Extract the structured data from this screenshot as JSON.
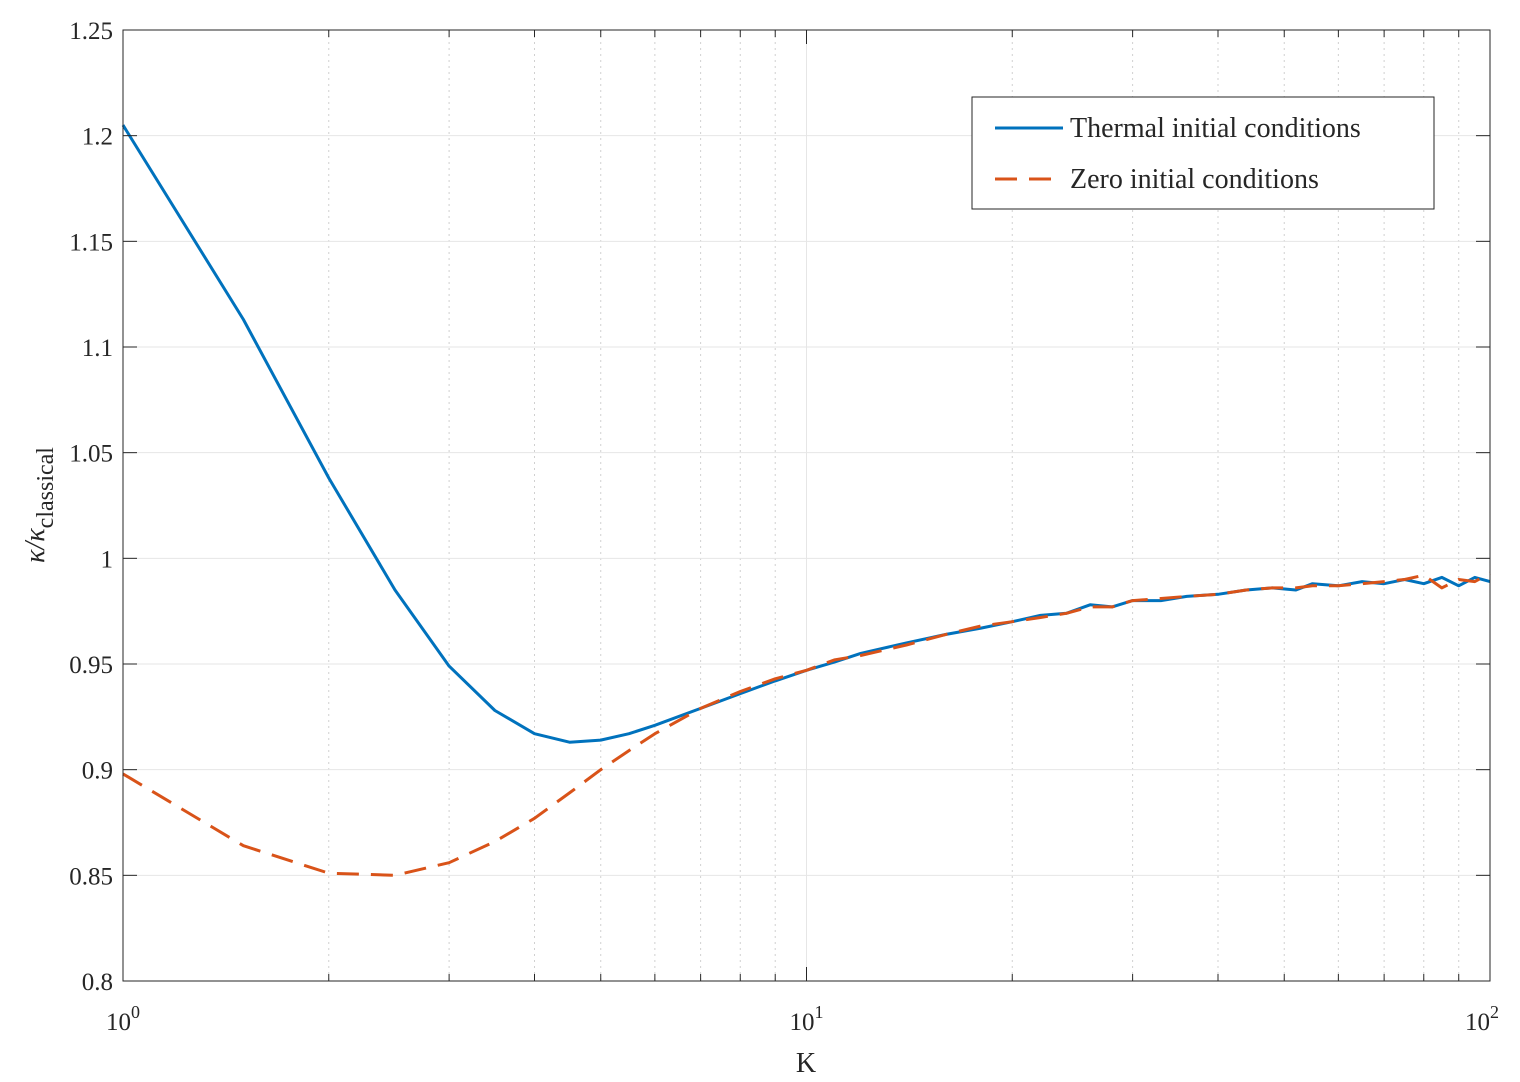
{
  "chart_data": {
    "type": "line",
    "title": "",
    "xlabel": "K",
    "ylabel": {
      "base": "κ/κ",
      "subscript": "classical"
    },
    "x_scale": "log",
    "xlim": [
      1,
      100
    ],
    "ylim": [
      0.8,
      1.25
    ],
    "grid": true,
    "minor_grid_x": true,
    "legend_position": "top-right",
    "x_ticks": [
      {
        "value": 1,
        "base": "10",
        "exp": "0"
      },
      {
        "value": 10,
        "base": "10",
        "exp": "1"
      },
      {
        "value": 100,
        "base": "10",
        "exp": "2"
      }
    ],
    "y_ticks": [
      {
        "value": 0.8,
        "label": "0.8"
      },
      {
        "value": 0.85,
        "label": "0.85"
      },
      {
        "value": 0.9,
        "label": "0.9"
      },
      {
        "value": 0.95,
        "label": "0.95"
      },
      {
        "value": 1.0,
        "label": "1"
      },
      {
        "value": 1.05,
        "label": "1.05"
      },
      {
        "value": 1.1,
        "label": "1.1"
      },
      {
        "value": 1.15,
        "label": "1.15"
      },
      {
        "value": 1.2,
        "label": "1.2"
      },
      {
        "value": 1.25,
        "label": "1.25"
      }
    ],
    "series": [
      {
        "name": "Thermal initial conditions",
        "color": "#0072BD",
        "dash": "solid",
        "x": [
          1,
          1.5,
          2,
          2.5,
          3,
          3.5,
          4,
          4.5,
          5,
          5.5,
          6,
          7,
          8,
          9,
          10,
          11,
          12,
          14,
          16,
          18,
          20,
          22,
          24,
          26,
          28,
          30,
          33,
          36,
          40,
          44,
          48,
          52,
          55,
          60,
          65,
          70,
          75,
          80,
          85,
          90,
          95,
          100
        ],
        "y": [
          1.205,
          1.113,
          1.038,
          0.985,
          0.949,
          0.928,
          0.917,
          0.913,
          0.914,
          0.917,
          0.921,
          0.929,
          0.936,
          0.942,
          0.947,
          0.951,
          0.955,
          0.96,
          0.964,
          0.967,
          0.97,
          0.973,
          0.974,
          0.978,
          0.977,
          0.98,
          0.98,
          0.982,
          0.983,
          0.985,
          0.986,
          0.985,
          0.988,
          0.987,
          0.989,
          0.988,
          0.99,
          0.988,
          0.991,
          0.987,
          0.991,
          0.989
        ]
      },
      {
        "name": "Zero initial conditions",
        "color": "#D95319",
        "dash": "dashed",
        "x": [
          1,
          1.5,
          2,
          2.5,
          3,
          3.5,
          4,
          4.5,
          5,
          5.5,
          6,
          7,
          8,
          9,
          10,
          11,
          12,
          14,
          16,
          18,
          20,
          22,
          24,
          26,
          28,
          30,
          33,
          36,
          40,
          44,
          48,
          52,
          55,
          60,
          65,
          70,
          75,
          80,
          85,
          90,
          95,
          100
        ],
        "y": [
          0.898,
          0.864,
          0.851,
          0.85,
          0.856,
          0.866,
          0.877,
          0.889,
          0.9,
          0.909,
          0.917,
          0.929,
          0.937,
          0.943,
          0.947,
          0.952,
          0.954,
          0.959,
          0.964,
          0.968,
          0.97,
          0.972,
          0.974,
          0.977,
          0.977,
          0.98,
          0.981,
          0.982,
          0.983,
          0.985,
          0.986,
          0.986,
          0.987,
          0.987,
          0.988,
          0.989,
          0.99,
          0.992,
          0.986,
          0.99,
          0.989,
          0.993
        ]
      }
    ]
  }
}
